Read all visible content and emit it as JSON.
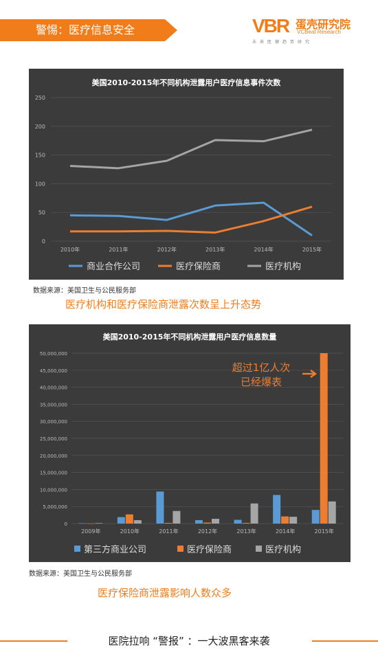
{
  "header": {
    "banner": "警惕：医疗信息安全",
    "logo_mark": "VBR",
    "logo_cn": "蛋壳研究院",
    "logo_en": "VCBeat Research",
    "logo_sub": "未来医健趋势研究",
    "brand_color": "#f07d1a"
  },
  "chart_data": [
    {
      "type": "line",
      "title": "美国2010-2015年不同机构泄露用户医疗信息事件次数",
      "categories": [
        "2010年",
        "2011年",
        "2012年",
        "2013年",
        "2014年",
        "2015年"
      ],
      "ylim": [
        0,
        250
      ],
      "yticks": [
        0,
        50,
        100,
        150,
        200,
        250
      ],
      "yticklabels": [
        "0",
        "50",
        "100",
        "150",
        "200",
        "250"
      ],
      "grid": true,
      "legend": "bottom",
      "series": [
        {
          "name": "商业合作公司",
          "color": "#5b9bd5",
          "values": [
            45,
            44,
            37,
            62,
            67,
            10
          ]
        },
        {
          "name": "医疗保险商",
          "color": "#ed7d31",
          "values": [
            17,
            17,
            18,
            15,
            35,
            60
          ]
        },
        {
          "name": "医疗机构",
          "color": "#a5a5a5",
          "values": [
            131,
            127,
            140,
            176,
            174,
            194
          ]
        }
      ]
    },
    {
      "type": "bar",
      "title": "美国2010-2015年不同机构泄露用户医疗信息数量",
      "categories": [
        "2009年",
        "2010年",
        "2011年",
        "2012年",
        "2013年",
        "2014年",
        "2015年"
      ],
      "ylim": [
        0,
        50000000
      ],
      "yticks": [
        0,
        5000000,
        10000000,
        15000000,
        20000000,
        25000000,
        30000000,
        35000000,
        40000000,
        45000000,
        50000000
      ],
      "yticklabels": [
        "0",
        "5,000,000",
        "10,000,000",
        "15,000,000",
        "20,000,000",
        "25,000,000",
        "30,000,000",
        "35,000,000",
        "40,000,000",
        "45,000,000",
        "50,000,000"
      ],
      "grid": true,
      "legend": "bottom",
      "series": [
        {
          "name": "第三方商业公司",
          "color": "#5b9bd5",
          "values": [
            100000,
            1900000,
            9400000,
            1000000,
            1100000,
            8400000,
            4000000
          ]
        },
        {
          "name": "医疗保险商",
          "color": "#ed7d31",
          "values": [
            50000,
            2700000,
            200000,
            300000,
            200000,
            2100000,
            50000000
          ]
        },
        {
          "name": "医疗机构",
          "color": "#a5a5a5",
          "values": [
            150000,
            1000000,
            3700000,
            1400000,
            5900000,
            2000000,
            6500000
          ]
        }
      ],
      "annotation": [
        "超过1亿人次",
        "已经爆表"
      ]
    }
  ],
  "source1": "数据来源：美国卫生与公民服务部",
  "caption1": "医疗机构和医疗保险商泄露次数呈上升态势",
  "source2": "数据来源：美国卫生与公民服务部",
  "caption2": "医疗保险商泄露影响人数众多",
  "footer": "医院拉响  “警报”  ：一大波黑客来袭"
}
